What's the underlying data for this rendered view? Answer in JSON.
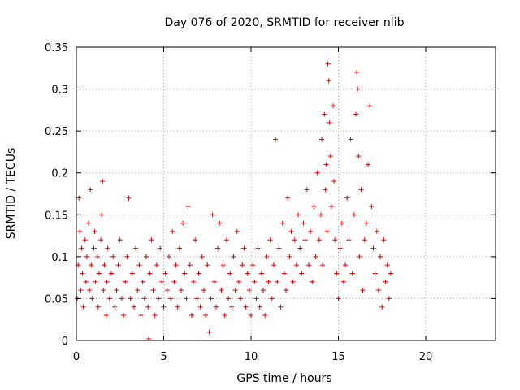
{
  "chart_data": {
    "type": "scatter",
    "title": "Day 076 of 2020, SRMTID for receiver nlib",
    "xlabel": "GPS time / hours",
    "ylabel": "SRMTID / TECUs",
    "xlim": [
      0,
      24
    ],
    "ylim": [
      0,
      0.35
    ],
    "xticks": [
      0,
      5,
      10,
      15,
      20
    ],
    "xtick_labels": [
      "0",
      "5",
      "10",
      "15",
      "20"
    ],
    "yticks": [
      0,
      0.05,
      0.1,
      0.15,
      0.2,
      0.25,
      0.3,
      0.35
    ],
    "ytick_labels": [
      "0",
      "0.05",
      "0.1",
      "0.15",
      "0.2",
      "0.25",
      "0.3",
      "0.35"
    ],
    "grid": true,
    "marker": "+",
    "color": "#e00000",
    "series": [
      {
        "name": "SRMTID",
        "points": [
          [
            0.05,
            0.05
          ],
          [
            0.1,
            0.09
          ],
          [
            0.15,
            0.17
          ],
          [
            0.2,
            0.13
          ],
          [
            0.25,
            0.06
          ],
          [
            0.3,
            0.11
          ],
          [
            0.35,
            0.08
          ],
          [
            0.4,
            0.04
          ],
          [
            0.5,
            0.12
          ],
          [
            0.55,
            0.07
          ],
          [
            0.6,
            0.1
          ],
          [
            0.7,
            0.14
          ],
          [
            0.75,
            0.06
          ],
          [
            0.8,
            0.18
          ],
          [
            0.85,
            0.09
          ],
          [
            0.9,
            0.05
          ],
          [
            1.0,
            0.11
          ],
          [
            1.05,
            0.13
          ],
          [
            1.1,
            0.07
          ],
          [
            1.2,
            0.1
          ],
          [
            1.25,
            0.04
          ],
          [
            1.3,
            0.08
          ],
          [
            1.4,
            0.12
          ],
          [
            1.45,
            0.15
          ],
          [
            1.5,
            0.19
          ],
          [
            1.55,
            0.06
          ],
          [
            1.6,
            0.09
          ],
          [
            1.7,
            0.03
          ],
          [
            1.75,
            0.07
          ],
          [
            1.8,
            0.11
          ],
          [
            1.9,
            0.05
          ],
          [
            2.0,
            0.08
          ],
          [
            2.1,
            0.1
          ],
          [
            2.2,
            0.04
          ],
          [
            2.3,
            0.06
          ],
          [
            2.4,
            0.09
          ],
          [
            2.5,
            0.12
          ],
          [
            2.6,
            0.05
          ],
          [
            2.7,
            0.03
          ],
          [
            2.8,
            0.07
          ],
          [
            2.9,
            0.1
          ],
          [
            3.0,
            0.17
          ],
          [
            3.1,
            0.05
          ],
          [
            3.2,
            0.08
          ],
          [
            3.3,
            0.04
          ],
          [
            3.4,
            0.11
          ],
          [
            3.5,
            0.06
          ],
          [
            3.6,
            0.09
          ],
          [
            3.7,
            0.03
          ],
          [
            3.8,
            0.07
          ],
          [
            3.9,
            0.05
          ],
          [
            4.0,
            0.1
          ],
          [
            4.1,
            0.04
          ],
          [
            4.15,
            0.002
          ],
          [
            4.2,
            0.08
          ],
          [
            4.3,
            0.12
          ],
          [
            4.4,
            0.06
          ],
          [
            4.5,
            0.03
          ],
          [
            4.6,
            0.09
          ],
          [
            4.7,
            0.05
          ],
          [
            4.8,
            0.11
          ],
          [
            4.9,
            0.07
          ],
          [
            5.0,
            0.04
          ],
          [
            5.1,
            0.08
          ],
          [
            5.2,
            0.06
          ],
          [
            5.3,
            0.1
          ],
          [
            5.4,
            0.05
          ],
          [
            5.5,
            0.13
          ],
          [
            5.6,
            0.07
          ],
          [
            5.7,
            0.09
          ],
          [
            5.8,
            0.04
          ],
          [
            5.9,
            0.11
          ],
          [
            6.0,
            0.06
          ],
          [
            6.1,
            0.14
          ],
          [
            6.2,
            0.08
          ],
          [
            6.3,
            0.05
          ],
          [
            6.4,
            0.16
          ],
          [
            6.5,
            0.09
          ],
          [
            6.6,
            0.03
          ],
          [
            6.7,
            0.07
          ],
          [
            6.8,
            0.12
          ],
          [
            6.9,
            0.05
          ],
          [
            7.0,
            0.08
          ],
          [
            7.1,
            0.04
          ],
          [
            7.2,
            0.1
          ],
          [
            7.3,
            0.06
          ],
          [
            7.4,
            0.03
          ],
          [
            7.5,
            0.09
          ],
          [
            7.6,
            0.01
          ],
          [
            7.7,
            0.05
          ],
          [
            7.8,
            0.15
          ],
          [
            7.9,
            0.07
          ],
          [
            8.0,
            0.04
          ],
          [
            8.1,
            0.11
          ],
          [
            8.2,
            0.14
          ],
          [
            8.3,
            0.06
          ],
          [
            8.4,
            0.09
          ],
          [
            8.5,
            0.03
          ],
          [
            8.6,
            0.12
          ],
          [
            8.7,
            0.05
          ],
          [
            8.8,
            0.08
          ],
          [
            8.9,
            0.04
          ],
          [
            9.0,
            0.1
          ],
          [
            9.1,
            0.06
          ],
          [
            9.2,
            0.13
          ],
          [
            9.3,
            0.07
          ],
          [
            9.4,
            0.05
          ],
          [
            9.5,
            0.09
          ],
          [
            9.6,
            0.11
          ],
          [
            9.7,
            0.04
          ],
          [
            9.8,
            0.08
          ],
          [
            9.9,
            0.06
          ],
          [
            10.0,
            0.03
          ],
          [
            10.1,
            0.09
          ],
          [
            10.2,
            0.07
          ],
          [
            10.3,
            0.05
          ],
          [
            10.4,
            0.11
          ],
          [
            10.5,
            0.04
          ],
          [
            10.6,
            0.08
          ],
          [
            10.7,
            0.06
          ],
          [
            10.8,
            0.03
          ],
          [
            10.9,
            0.1
          ],
          [
            11.0,
            0.07
          ],
          [
            11.1,
            0.12
          ],
          [
            11.2,
            0.05
          ],
          [
            11.3,
            0.09
          ],
          [
            11.4,
            0.24
          ],
          [
            11.5,
            0.07
          ],
          [
            11.6,
            0.11
          ],
          [
            11.7,
            0.04
          ],
          [
            11.8,
            0.14
          ],
          [
            11.9,
            0.08
          ],
          [
            12.0,
            0.06
          ],
          [
            12.1,
            0.17
          ],
          [
            12.2,
            0.1
          ],
          [
            12.3,
            0.13
          ],
          [
            12.4,
            0.07
          ],
          [
            12.5,
            0.12
          ],
          [
            12.6,
            0.09
          ],
          [
            12.7,
            0.15
          ],
          [
            12.8,
            0.11
          ],
          [
            12.9,
            0.08
          ],
          [
            13.0,
            0.14
          ],
          [
            13.1,
            0.12
          ],
          [
            13.2,
            0.18
          ],
          [
            13.3,
            0.09
          ],
          [
            13.4,
            0.13
          ],
          [
            13.5,
            0.07
          ],
          [
            13.6,
            0.16
          ],
          [
            13.7,
            0.1
          ],
          [
            13.8,
            0.2
          ],
          [
            13.9,
            0.12
          ],
          [
            14.0,
            0.15
          ],
          [
            14.05,
            0.24
          ],
          [
            14.1,
            0.09
          ],
          [
            14.2,
            0.27
          ],
          [
            14.25,
            0.18
          ],
          [
            14.3,
            0.21
          ],
          [
            14.35,
            0.13
          ],
          [
            14.4,
            0.33
          ],
          [
            14.45,
            0.31
          ],
          [
            14.5,
            0.26
          ],
          [
            14.55,
            0.22
          ],
          [
            14.6,
            0.16
          ],
          [
            14.7,
            0.28
          ],
          [
            14.75,
            0.19
          ],
          [
            14.8,
            0.12
          ],
          [
            14.9,
            0.08
          ],
          [
            15.0,
            0.05
          ],
          [
            15.1,
            0.11
          ],
          [
            15.2,
            0.14
          ],
          [
            15.3,
            0.07
          ],
          [
            15.4,
            0.09
          ],
          [
            15.5,
            0.17
          ],
          [
            15.6,
            0.12
          ],
          [
            15.7,
            0.24
          ],
          [
            15.8,
            0.08
          ],
          [
            15.9,
            0.15
          ],
          [
            16.0,
            0.27
          ],
          [
            16.05,
            0.32
          ],
          [
            16.1,
            0.3
          ],
          [
            16.15,
            0.22
          ],
          [
            16.2,
            0.1
          ],
          [
            16.3,
            0.18
          ],
          [
            16.4,
            0.06
          ],
          [
            16.5,
            0.12
          ],
          [
            16.6,
            0.14
          ],
          [
            16.7,
            0.21
          ],
          [
            16.8,
            0.28
          ],
          [
            16.9,
            0.16
          ],
          [
            17.0,
            0.11
          ],
          [
            17.1,
            0.08
          ],
          [
            17.2,
            0.13
          ],
          [
            17.3,
            0.06
          ],
          [
            17.4,
            0.1
          ],
          [
            17.5,
            0.04
          ],
          [
            17.6,
            0.12
          ],
          [
            17.7,
            0.07
          ],
          [
            17.8,
            0.09
          ],
          [
            17.9,
            0.05
          ],
          [
            18.0,
            0.08
          ]
        ]
      }
    ]
  }
}
